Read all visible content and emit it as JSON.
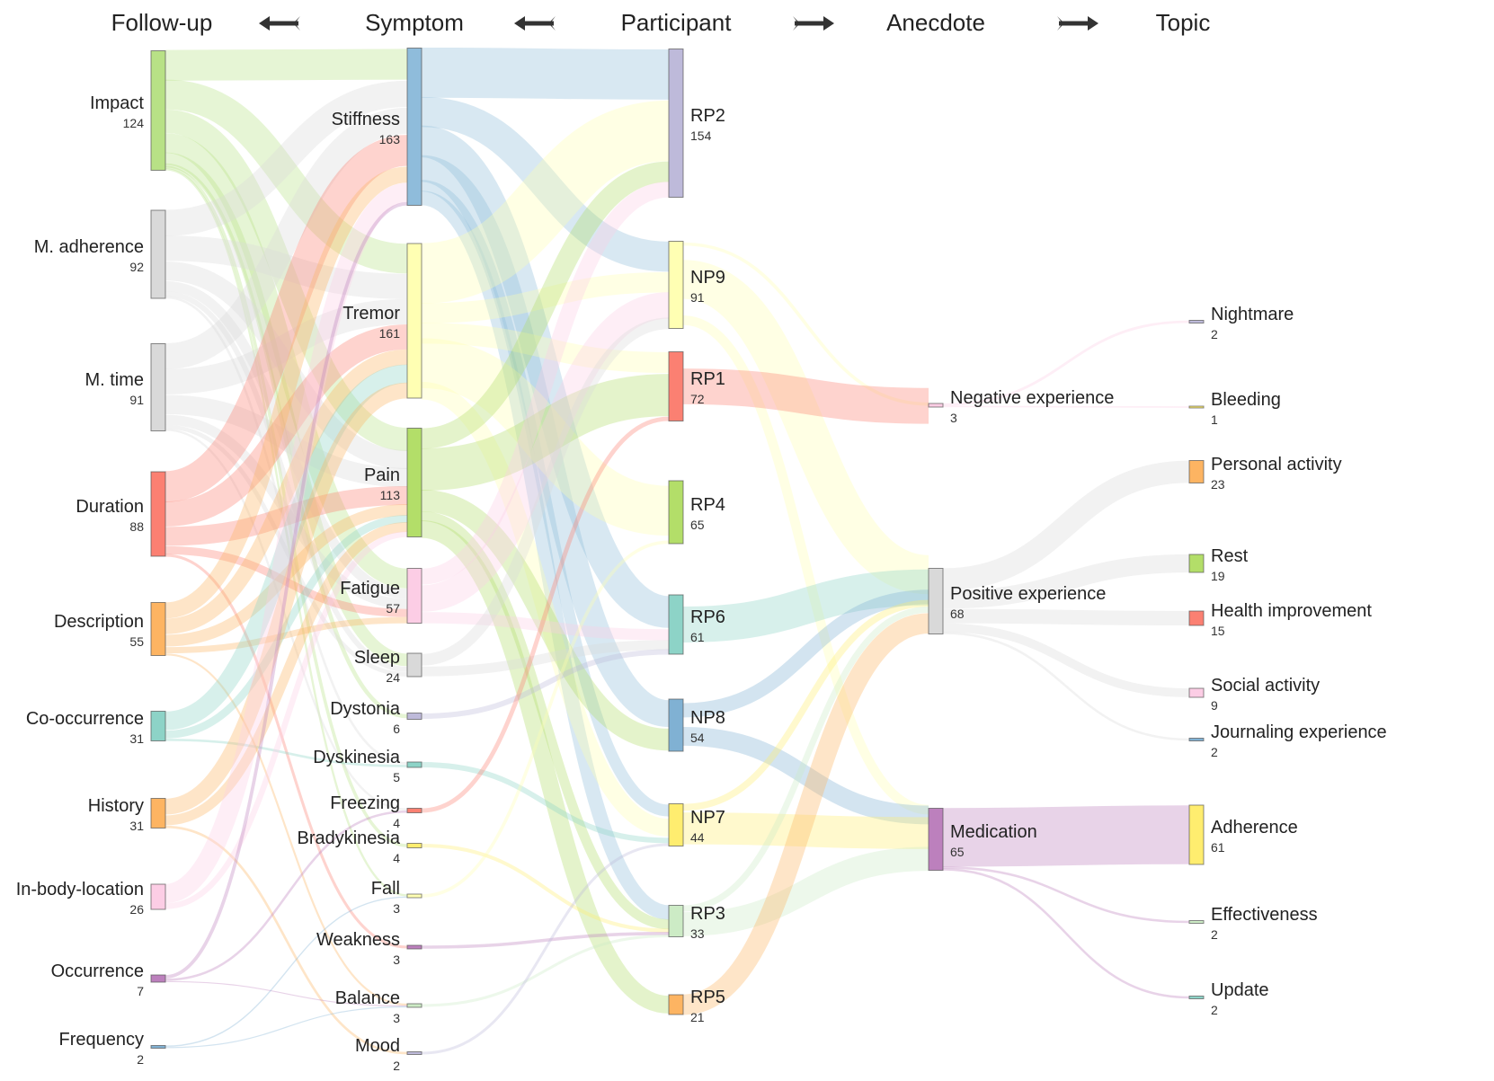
{
  "columns": [
    {
      "title": "Follow-up"
    },
    {
      "title": "Symptom"
    },
    {
      "title": "Participant"
    },
    {
      "title": "Anecdote"
    },
    {
      "title": "Topic"
    }
  ],
  "arrows": [
    "left",
    "left",
    "right",
    "right"
  ],
  "nodes": [
    {
      "id": "impact",
      "col": 0,
      "label": "Impact",
      "count": "124",
      "color": "#b8e186"
    },
    {
      "id": "madh",
      "col": 0,
      "label": "M. adherence",
      "count": "92",
      "color": "#d9d9d9"
    },
    {
      "id": "mtime",
      "col": 0,
      "label": "M. time",
      "count": "91",
      "color": "#d9d9d9"
    },
    {
      "id": "duration",
      "col": 0,
      "label": "Duration",
      "count": "88",
      "color": "#fb8072"
    },
    {
      "id": "description",
      "col": 0,
      "label": "Description",
      "count": "55",
      "color": "#fdb462"
    },
    {
      "id": "cooc",
      "col": 0,
      "label": "Co-occurrence",
      "count": "31",
      "color": "#8dd3c7"
    },
    {
      "id": "history",
      "col": 0,
      "label": "History",
      "count": "31",
      "color": "#fdb462"
    },
    {
      "id": "inbody",
      "col": 0,
      "label": "In-body-location",
      "count": "26",
      "color": "#fccde5"
    },
    {
      "id": "occurrence",
      "col": 0,
      "label": "Occurrence",
      "count": "7",
      "color": "#bc80bd"
    },
    {
      "id": "frequency",
      "col": 0,
      "label": "Frequency",
      "count": "2",
      "color": "#80b1d3"
    },
    {
      "id": "stiffness",
      "col": 1,
      "label": "Stiffness",
      "count": "163",
      "color": "#8fbcdb"
    },
    {
      "id": "tremor",
      "col": 1,
      "label": "Tremor",
      "count": "161",
      "color": "#ffffb3"
    },
    {
      "id": "pain",
      "col": 1,
      "label": "Pain",
      "count": "113",
      "color": "#b3de69"
    },
    {
      "id": "fatigue",
      "col": 1,
      "label": "Fatigue",
      "count": "57",
      "color": "#fccde5"
    },
    {
      "id": "sleep",
      "col": 1,
      "label": "Sleep",
      "count": "24",
      "color": "#d9d9d9"
    },
    {
      "id": "dystonia",
      "col": 1,
      "label": "Dystonia",
      "count": "6",
      "color": "#bebada"
    },
    {
      "id": "dyskinesia",
      "col": 1,
      "label": "Dyskinesia",
      "count": "5",
      "color": "#8dd3c7"
    },
    {
      "id": "freezing",
      "col": 1,
      "label": "Freezing",
      "count": "4",
      "color": "#fb8072"
    },
    {
      "id": "bradykinesia",
      "col": 1,
      "label": "Bradykinesia",
      "count": "4",
      "color": "#ffed6f"
    },
    {
      "id": "fall",
      "col": 1,
      "label": "Fall",
      "count": "3",
      "color": "#ffffb3"
    },
    {
      "id": "weakness",
      "col": 1,
      "label": "Weakness",
      "count": "3",
      "color": "#bc80bd"
    },
    {
      "id": "balance",
      "col": 1,
      "label": "Balance",
      "count": "3",
      "color": "#ccebc5"
    },
    {
      "id": "mood",
      "col": 1,
      "label": "Mood",
      "count": "2",
      "color": "#bebada"
    },
    {
      "id": "rp2",
      "col": 2,
      "label": "RP2",
      "count": "154",
      "color": "#bebada"
    },
    {
      "id": "np9",
      "col": 2,
      "label": "NP9",
      "count": "91",
      "color": "#ffffb3"
    },
    {
      "id": "rp1",
      "col": 2,
      "label": "RP1",
      "count": "72",
      "color": "#fb8072"
    },
    {
      "id": "rp4",
      "col": 2,
      "label": "RP4",
      "count": "65",
      "color": "#b3de69"
    },
    {
      "id": "rp6",
      "col": 2,
      "label": "RP6",
      "count": "61",
      "color": "#8dd3c7"
    },
    {
      "id": "np8",
      "col": 2,
      "label": "NP8",
      "count": "54",
      "color": "#80b1d3"
    },
    {
      "id": "np7",
      "col": 2,
      "label": "NP7",
      "count": "44",
      "color": "#ffed6f"
    },
    {
      "id": "rp3",
      "col": 2,
      "label": "RP3",
      "count": "33",
      "color": "#ccebc5"
    },
    {
      "id": "rp5",
      "col": 2,
      "label": "RP5",
      "count": "21",
      "color": "#fdb462"
    },
    {
      "id": "negexp",
      "col": 3,
      "label": "Negative experience",
      "count": "3",
      "color": "#fccde5"
    },
    {
      "id": "posexp",
      "col": 3,
      "label": "Positive experience",
      "count": "68",
      "color": "#d9d9d9"
    },
    {
      "id": "medication",
      "col": 3,
      "label": "Medication",
      "count": "65",
      "color": "#bc80bd"
    },
    {
      "id": "nightmare",
      "col": 4,
      "label": "Nightmare",
      "count": "2",
      "color": "#bebada"
    },
    {
      "id": "bleeding",
      "col": 4,
      "label": "Bleeding",
      "count": "1",
      "color": "#ffed6f"
    },
    {
      "id": "personal",
      "col": 4,
      "label": "Personal activity",
      "count": "23",
      "color": "#fdb462"
    },
    {
      "id": "rest",
      "col": 4,
      "label": "Rest",
      "count": "19",
      "color": "#b3de69"
    },
    {
      "id": "health",
      "col": 4,
      "label": "Health improvement",
      "count": "15",
      "color": "#fb8072"
    },
    {
      "id": "social",
      "col": 4,
      "label": "Social activity",
      "count": "9",
      "color": "#fccde5"
    },
    {
      "id": "journaling",
      "col": 4,
      "label": "Journaling experience",
      "count": "2",
      "color": "#80b1d3"
    },
    {
      "id": "adherence",
      "col": 4,
      "label": "Adherence",
      "count": "61",
      "color": "#ffed6f"
    },
    {
      "id": "effectiveness",
      "col": 4,
      "label": "Effectiveness",
      "count": "2",
      "color": "#ccebc5"
    },
    {
      "id": "update",
      "col": 4,
      "label": "Update",
      "count": "2",
      "color": "#8dd3c7"
    }
  ],
  "links": [
    {
      "source": "impact",
      "target": "stiffness",
      "value": 30
    },
    {
      "source": "impact",
      "target": "tremor",
      "value": 30
    },
    {
      "source": "impact",
      "target": "pain",
      "value": 25
    },
    {
      "source": "impact",
      "target": "fatigue",
      "value": 20
    },
    {
      "source": "impact",
      "target": "sleep",
      "value": 12
    },
    {
      "source": "impact",
      "target": "dystonia",
      "value": 2
    },
    {
      "source": "impact",
      "target": "fall",
      "value": 2
    },
    {
      "source": "impact",
      "target": "bradykinesia",
      "value": 2
    },
    {
      "source": "madh",
      "target": "stiffness",
      "value": 25
    },
    {
      "source": "madh",
      "target": "tremor",
      "value": 25
    },
    {
      "source": "madh",
      "target": "pain",
      "value": 20
    },
    {
      "source": "madh",
      "target": "fatigue",
      "value": 10
    },
    {
      "source": "madh",
      "target": "sleep",
      "value": 5
    },
    {
      "source": "madh",
      "target": "dyskinesia",
      "value": 2
    },
    {
      "source": "mtime",
      "target": "stiffness",
      "value": 25
    },
    {
      "source": "mtime",
      "target": "tremor",
      "value": 25
    },
    {
      "source": "mtime",
      "target": "pain",
      "value": 20
    },
    {
      "source": "mtime",
      "target": "fatigue",
      "value": 10
    },
    {
      "source": "mtime",
      "target": "sleep",
      "value": 4
    },
    {
      "source": "mtime",
      "target": "freezing",
      "value": 2
    },
    {
      "source": "duration",
      "target": "stiffness",
      "value": 30
    },
    {
      "source": "duration",
      "target": "tremor",
      "value": 25
    },
    {
      "source": "duration",
      "target": "pain",
      "value": 20
    },
    {
      "source": "duration",
      "target": "fatigue",
      "value": 8
    },
    {
      "source": "duration",
      "target": "weakness",
      "value": 2
    },
    {
      "source": "description",
      "target": "stiffness",
      "value": 15
    },
    {
      "source": "description",
      "target": "tremor",
      "value": 15
    },
    {
      "source": "description",
      "target": "pain",
      "value": 12
    },
    {
      "source": "description",
      "target": "fatigue",
      "value": 6
    },
    {
      "source": "description",
      "target": "balance",
      "value": 2
    },
    {
      "source": "cooc",
      "target": "tremor",
      "value": 18
    },
    {
      "source": "cooc",
      "target": "pain",
      "value": 8
    },
    {
      "source": "cooc",
      "target": "dyskinesia",
      "value": 2
    },
    {
      "source": "history",
      "target": "tremor",
      "value": 15
    },
    {
      "source": "history",
      "target": "pain",
      "value": 10
    },
    {
      "source": "history",
      "target": "mood",
      "value": 2
    },
    {
      "source": "inbody",
      "target": "stiffness",
      "value": 18
    },
    {
      "source": "inbody",
      "target": "pain",
      "value": 6
    },
    {
      "source": "occurrence",
      "target": "stiffness",
      "value": 3
    },
    {
      "source": "occurrence",
      "target": "freezing",
      "value": 2
    },
    {
      "source": "occurrence",
      "target": "balance",
      "value": 1
    },
    {
      "source": "frequency",
      "target": "balance",
      "value": 1
    },
    {
      "source": "frequency",
      "target": "fall",
      "value": 1
    },
    {
      "source": "stiffness",
      "target": "rp2",
      "value": 50
    },
    {
      "source": "stiffness",
      "target": "np9",
      "value": 30
    },
    {
      "source": "stiffness",
      "target": "rp6",
      "value": 30
    },
    {
      "source": "stiffness",
      "target": "np8",
      "value": 25
    },
    {
      "source": "stiffness",
      "target": "rp3",
      "value": 15
    },
    {
      "source": "stiffness",
      "target": "np7",
      "value": 10
    },
    {
      "source": "tremor",
      "target": "rp2",
      "value": 60
    },
    {
      "source": "tremor",
      "target": "np9",
      "value": 20
    },
    {
      "source": "tremor",
      "target": "rp4",
      "value": 40
    },
    {
      "source": "tremor",
      "target": "rp1",
      "value": 20
    },
    {
      "source": "tremor",
      "target": "np7",
      "value": 15
    },
    {
      "source": "pain",
      "target": "rp1",
      "value": 40
    },
    {
      "source": "pain",
      "target": "rp2",
      "value": 20
    },
    {
      "source": "pain",
      "target": "np8",
      "value": 20
    },
    {
      "source": "pain",
      "target": "rp5",
      "value": 15
    },
    {
      "source": "pain",
      "target": "rp3",
      "value": 10
    },
    {
      "source": "fatigue",
      "target": "np9",
      "value": 25
    },
    {
      "source": "fatigue",
      "target": "rp2",
      "value": 15
    },
    {
      "source": "fatigue",
      "target": "rp6",
      "value": 10
    },
    {
      "source": "sleep",
      "target": "np9",
      "value": 10
    },
    {
      "source": "sleep",
      "target": "rp6",
      "value": 8
    },
    {
      "source": "dystonia",
      "target": "rp6",
      "value": 4
    },
    {
      "source": "dyskinesia",
      "target": "np7",
      "value": 4
    },
    {
      "source": "freezing",
      "target": "rp1",
      "value": 4
    },
    {
      "source": "bradykinesia",
      "target": "rp3",
      "value": 3
    },
    {
      "source": "fall",
      "target": "rp4",
      "value": 2
    },
    {
      "source": "weakness",
      "target": "rp3",
      "value": 3
    },
    {
      "source": "balance",
      "target": "rp3",
      "value": 2
    },
    {
      "source": "mood",
      "target": "np7",
      "value": 2
    },
    {
      "source": "np9",
      "target": "negexp",
      "value": 1
    },
    {
      "source": "np9",
      "target": "posexp",
      "value": 12
    },
    {
      "source": "np9",
      "target": "medication",
      "value": 3
    },
    {
      "source": "rp1",
      "target": "negexp",
      "value": 2
    },
    {
      "source": "rp6",
      "target": "posexp",
      "value": 12
    },
    {
      "source": "np8",
      "target": "posexp",
      "value": 6
    },
    {
      "source": "np8",
      "target": "medication",
      "value": 8
    },
    {
      "source": "np7",
      "target": "posexp",
      "value": 6
    },
    {
      "source": "np7",
      "target": "medication",
      "value": 30
    },
    {
      "source": "rp3",
      "target": "posexp",
      "value": 6
    },
    {
      "source": "rp3",
      "target": "medication",
      "value": 24
    },
    {
      "source": "rp5",
      "target": "posexp",
      "value": 20
    },
    {
      "source": "negexp",
      "target": "nightmare",
      "value": 2
    },
    {
      "source": "negexp",
      "target": "bleeding",
      "value": 1
    },
    {
      "source": "posexp",
      "target": "personal",
      "value": 23
    },
    {
      "source": "posexp",
      "target": "rest",
      "value": 19
    },
    {
      "source": "posexp",
      "target": "health",
      "value": 15
    },
    {
      "source": "posexp",
      "target": "social",
      "value": 9
    },
    {
      "source": "posexp",
      "target": "journaling",
      "value": 2
    },
    {
      "source": "medication",
      "target": "adherence",
      "value": 61
    },
    {
      "source": "medication",
      "target": "effectiveness",
      "value": 2
    },
    {
      "source": "medication",
      "target": "update",
      "value": 2
    }
  ]
}
